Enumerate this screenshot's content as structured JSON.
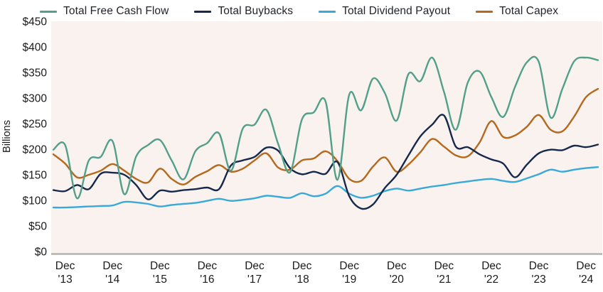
{
  "figure": {
    "ylabel": "Billions"
  },
  "colors": {
    "background": "#ffffff",
    "plot_background": "#f9f2ee",
    "axis_line": "#b3b3b3",
    "tick_text": "#1a1a1a",
    "legend_text": "#1f2328",
    "free_cash_flow": "#52a08a",
    "buybacks": "#16294c",
    "dividend_payout": "#39a9da",
    "capex": "#b4691e"
  },
  "chart_data": {
    "type": "line",
    "title": "",
    "xlabel": "",
    "ylabel": "Billions",
    "ylim": [
      0,
      450
    ],
    "grid": false,
    "legend_position": "top",
    "y_ticks": [
      "$450",
      "$400",
      "$350",
      "$300",
      "$250",
      "$200",
      "$150",
      "$100",
      "$50",
      "$0"
    ],
    "y_tick_values": [
      450,
      400,
      350,
      300,
      250,
      200,
      150,
      100,
      50,
      0
    ],
    "x_tick_labels": [
      [
        "Dec",
        "'13"
      ],
      [
        "Dec",
        "'14"
      ],
      [
        "Dec",
        "'15"
      ],
      [
        "Dec",
        "'16"
      ],
      [
        "Dec",
        "'17"
      ],
      [
        "Dec",
        "'18"
      ],
      [
        "Dec",
        "'19"
      ],
      [
        "Dec",
        "'20"
      ],
      [
        "Dec",
        "'21"
      ],
      [
        "Dec",
        "'22"
      ],
      [
        "Dec",
        "'23"
      ],
      [
        "Dec",
        "'24"
      ]
    ],
    "x_sampling": "quarterly",
    "x_quarters": [
      "2013Q3",
      "2013Q4",
      "2014Q1",
      "2014Q2",
      "2014Q3",
      "2014Q4",
      "2015Q1",
      "2015Q2",
      "2015Q3",
      "2015Q4",
      "2016Q1",
      "2016Q2",
      "2016Q3",
      "2016Q4",
      "2017Q1",
      "2017Q2",
      "2017Q3",
      "2017Q4",
      "2018Q1",
      "2018Q2",
      "2018Q3",
      "2018Q4",
      "2019Q1",
      "2019Q2",
      "2019Q3",
      "2019Q4",
      "2020Q1",
      "2020Q2",
      "2020Q3",
      "2020Q4",
      "2021Q1",
      "2021Q2",
      "2021Q3",
      "2021Q4",
      "2022Q1",
      "2022Q2",
      "2022Q3",
      "2022Q4",
      "2023Q1",
      "2023Q2",
      "2023Q3",
      "2023Q4",
      "2024Q1",
      "2024Q2",
      "2024Q3",
      "2024Q4",
      "2025Q1"
    ],
    "x_index_of_first_tick": 1,
    "x_indices_per_tick": 4,
    "series": [
      {
        "name": "Total Free Cash Flow",
        "color": "#52a08a",
        "values": [
          199,
          208,
          104,
          178,
          185,
          216,
          112,
          186,
          208,
          218,
          178,
          141,
          196,
          212,
          231,
          158,
          240,
          248,
          277,
          210,
          155,
          258,
          272,
          293,
          140,
          307,
          276,
          338,
          310,
          256,
          347,
          333,
          379,
          312,
          238,
          330,
          352,
          302,
          263,
          322,
          370,
          371,
          262,
          318,
          372,
          379,
          374
        ]
      },
      {
        "name": "Total Buybacks",
        "color": "#16294c",
        "values": [
          120,
          118,
          130,
          122,
          152,
          154,
          150,
          130,
          102,
          119,
          117,
          120,
          122,
          125,
          122,
          168,
          178,
          185,
          203,
          197,
          163,
          151,
          156,
          152,
          175,
          108,
          84,
          92,
          124,
          150,
          188,
          225,
          248,
          266,
          205,
          204,
          190,
          180,
          172,
          145,
          170,
          192,
          199,
          198,
          207,
          204,
          209
        ]
      },
      {
        "name": "Total Dividend Payout",
        "color": "#39a9da",
        "values": [
          86,
          86,
          87,
          88,
          89,
          90,
          97,
          96,
          93,
          88,
          91,
          93,
          95,
          99,
          103,
          99,
          101,
          104,
          109,
          107,
          105,
          114,
          108,
          113,
          128,
          113,
          105,
          109,
          118,
          123,
          119,
          123,
          127,
          130,
          134,
          137,
          140,
          142,
          138,
          136,
          143,
          151,
          160,
          156,
          160,
          163,
          165
        ]
      },
      {
        "name": "Total Capex",
        "color": "#b4691e",
        "values": [
          190,
          172,
          145,
          150,
          158,
          171,
          158,
          142,
          135,
          162,
          142,
          131,
          146,
          157,
          169,
          156,
          162,
          178,
          192,
          164,
          160,
          178,
          182,
          196,
          177,
          142,
          138,
          166,
          184,
          156,
          170,
          194,
          220,
          205,
          188,
          186,
          213,
          255,
          224,
          227,
          244,
          267,
          238,
          235,
          264,
          302,
          318
        ]
      }
    ]
  }
}
